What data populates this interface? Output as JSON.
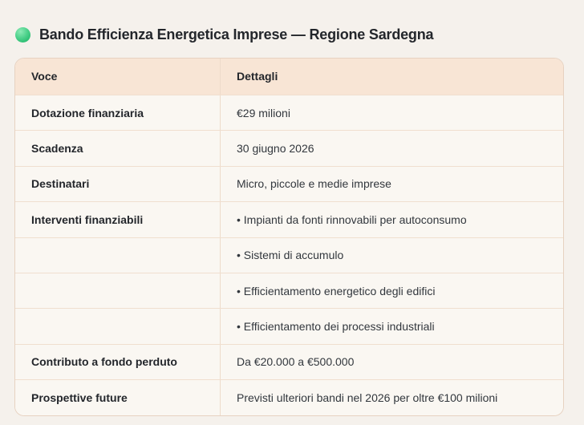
{
  "page": {
    "background_color": "#f5f1ec"
  },
  "header": {
    "icon": "green-circle-icon",
    "icon_color": "#2fbf74",
    "title": "Bando Efficienza Energetica Imprese — Regione Sardegna"
  },
  "table": {
    "header_background_color": "#f8e5d5",
    "row_background_color": "#faf7f2",
    "border_color": "#e7d2c1",
    "columns": [
      "Voce",
      "Dettagli"
    ],
    "rows": [
      {
        "label": "Dotazione finanziaria",
        "value": "€29 milioni"
      },
      {
        "label": "Scadenza",
        "value": "30 giugno 2026"
      },
      {
        "label": "Destinatari",
        "value": "Micro, piccole e medie imprese"
      },
      {
        "label": "Interventi finanziabili",
        "value": "• Impianti da fonti rinnovabili per autoconsumo"
      },
      {
        "label": "",
        "value": "• Sistemi di accumulo"
      },
      {
        "label": "",
        "value": "• Efficientamento energetico degli edifici"
      },
      {
        "label": "",
        "value": "• Efficientamento dei processi industriali"
      },
      {
        "label": "Contributo a fondo perduto",
        "value": "Da €20.000 a €500.000"
      },
      {
        "label": "Prospettive future",
        "value": "Previsti ulteriori bandi nel 2026 per oltre €100 milioni"
      }
    ]
  }
}
